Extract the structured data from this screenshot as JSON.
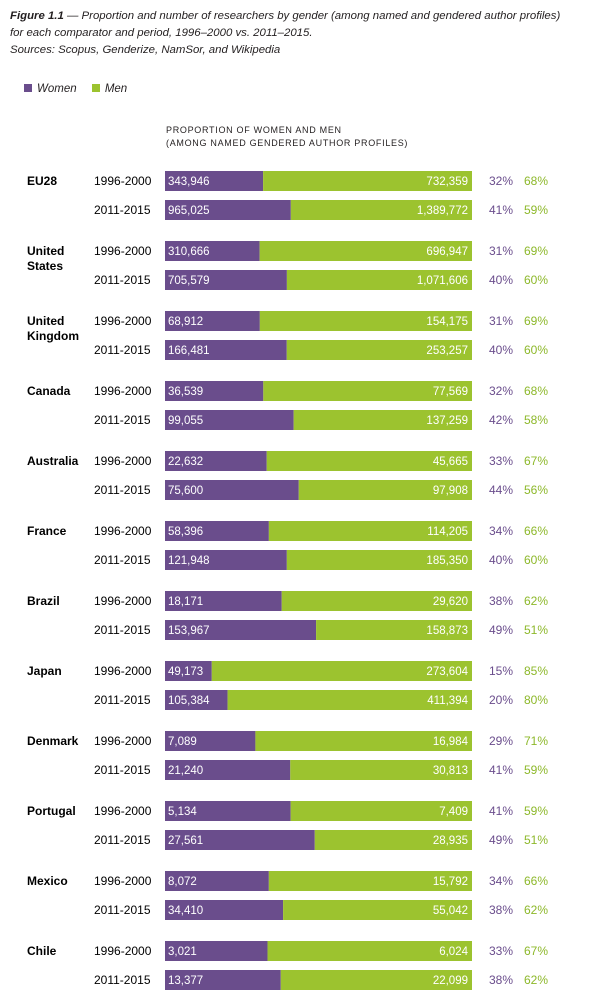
{
  "caption": {
    "label": "Figure 1.1",
    "dash": "—",
    "line1": "Proportion and number of researchers by gender (among named and gendered author profiles)",
    "line2": "for each comparator and period, 1996–2000 vs. 2011–2015.",
    "sources": "Sources: Scopus, Genderize, NamSor, and Wikipedia"
  },
  "legend": [
    {
      "name": "Women",
      "color": "#6a4d8c"
    },
    {
      "name": "Men",
      "color": "#9cc32f"
    }
  ],
  "heading": {
    "line1": "Proportion of women and men",
    "line2": "(among named gendered author profiles)"
  },
  "colors": {
    "women": "#6a4d8c",
    "men": "#9cc32f",
    "women_text": "#6a4d8c",
    "men_text": "#8db82a"
  },
  "chart_data": {
    "type": "bar",
    "orientation": "horizontal",
    "stacked": "100%",
    "title": "Proportion of women and men (among named gendered author profiles)",
    "series_names": [
      "Women",
      "Men"
    ],
    "groups": [
      {
        "label_lines": [
          "EU28"
        ],
        "rows": [
          {
            "period": "1996-2000",
            "women": 343946,
            "men": 732359,
            "women_label": "343,946",
            "men_label": "732,359",
            "women_pct": "32%",
            "men_pct": "68%"
          },
          {
            "period": "2011-2015",
            "women": 965025,
            "men": 1389772,
            "women_label": "965,025",
            "men_label": "1,389,772",
            "women_pct": "41%",
            "men_pct": "59%"
          }
        ]
      },
      {
        "label_lines": [
          "United",
          "States"
        ],
        "rows": [
          {
            "period": "1996-2000",
            "women": 310666,
            "men": 696947,
            "women_label": "310,666",
            "men_label": "696,947",
            "women_pct": "31%",
            "men_pct": "69%"
          },
          {
            "period": "2011-2015",
            "women": 705579,
            "men": 1071606,
            "women_label": "705,579",
            "men_label": "1,071,606",
            "women_pct": "40%",
            "men_pct": "60%"
          }
        ]
      },
      {
        "label_lines": [
          "United",
          "Kingdom"
        ],
        "rows": [
          {
            "period": "1996-2000",
            "women": 68912,
            "men": 154175,
            "women_label": "68,912",
            "men_label": "154,175",
            "women_pct": "31%",
            "men_pct": "69%"
          },
          {
            "period": "2011-2015",
            "women": 166481,
            "men": 253257,
            "women_label": "166,481",
            "men_label": "253,257",
            "women_pct": "40%",
            "men_pct": "60%"
          }
        ]
      },
      {
        "label_lines": [
          "Canada"
        ],
        "rows": [
          {
            "period": "1996-2000",
            "women": 36539,
            "men": 77569,
            "women_label": "36,539",
            "men_label": "77,569",
            "women_pct": "32%",
            "men_pct": "68%"
          },
          {
            "period": "2011-2015",
            "women": 99055,
            "men": 137259,
            "women_label": "99,055",
            "men_label": "137,259",
            "women_pct": "42%",
            "men_pct": "58%"
          }
        ]
      },
      {
        "label_lines": [
          "Australia"
        ],
        "rows": [
          {
            "period": "1996-2000",
            "women": 22632,
            "men": 45665,
            "women_label": "22,632",
            "men_label": "45,665",
            "women_pct": "33%",
            "men_pct": "67%"
          },
          {
            "period": "2011-2015",
            "women": 75600,
            "men": 97908,
            "women_label": "75,600",
            "men_label": "97,908",
            "women_pct": "44%",
            "men_pct": "56%"
          }
        ]
      },
      {
        "label_lines": [
          "France"
        ],
        "rows": [
          {
            "period": "1996-2000",
            "women": 58396,
            "men": 114205,
            "women_label": "58,396",
            "men_label": "114,205",
            "women_pct": "34%",
            "men_pct": "66%"
          },
          {
            "period": "2011-2015",
            "women": 121948,
            "men": 185350,
            "women_label": "121,948",
            "men_label": "185,350",
            "women_pct": "40%",
            "men_pct": "60%"
          }
        ]
      },
      {
        "label_lines": [
          "Brazil"
        ],
        "rows": [
          {
            "period": "1996-2000",
            "women": 18171,
            "men": 29620,
            "women_label": "18,171",
            "men_label": "29,620",
            "women_pct": "38%",
            "men_pct": "62%"
          },
          {
            "period": "2011-2015",
            "women": 153967,
            "men": 158873,
            "women_label": "153,967",
            "men_label": "158,873",
            "women_pct": "49%",
            "men_pct": "51%"
          }
        ]
      },
      {
        "label_lines": [
          "Japan"
        ],
        "rows": [
          {
            "period": "1996-2000",
            "women": 49173,
            "men": 273604,
            "women_label": "49,173",
            "men_label": "273,604",
            "women_pct": "15%",
            "men_pct": "85%"
          },
          {
            "period": "2011-2015",
            "women": 105384,
            "men": 411394,
            "women_label": "105,384",
            "men_label": "411,394",
            "women_pct": "20%",
            "men_pct": "80%"
          }
        ]
      },
      {
        "label_lines": [
          "Denmark"
        ],
        "rows": [
          {
            "period": "1996-2000",
            "women": 7089,
            "men": 16984,
            "women_label": "7,089",
            "men_label": "16,984",
            "women_pct": "29%",
            "men_pct": "71%"
          },
          {
            "period": "2011-2015",
            "women": 21240,
            "men": 30813,
            "women_label": "21,240",
            "men_label": "30,813",
            "women_pct": "41%",
            "men_pct": "59%"
          }
        ]
      },
      {
        "label_lines": [
          "Portugal"
        ],
        "rows": [
          {
            "period": "1996-2000",
            "women": 5134,
            "men": 7409,
            "women_label": "5,134",
            "men_label": "7,409",
            "women_pct": "41%",
            "men_pct": "59%"
          },
          {
            "period": "2011-2015",
            "women": 27561,
            "men": 28935,
            "women_label": "27,561",
            "men_label": "28,935",
            "women_pct": "49%",
            "men_pct": "51%"
          }
        ]
      },
      {
        "label_lines": [
          "Mexico"
        ],
        "rows": [
          {
            "period": "1996-2000",
            "women": 8072,
            "men": 15792,
            "women_label": "8,072",
            "men_label": "15,792",
            "women_pct": "34%",
            "men_pct": "66%"
          },
          {
            "period": "2011-2015",
            "women": 34410,
            "men": 55042,
            "women_label": "34,410",
            "men_label": "55,042",
            "women_pct": "38%",
            "men_pct": "62%"
          }
        ]
      },
      {
        "label_lines": [
          "Chile"
        ],
        "rows": [
          {
            "period": "1996-2000",
            "women": 3021,
            "men": 6024,
            "women_label": "3,021",
            "men_label": "6,024",
            "women_pct": "33%",
            "men_pct": "67%"
          },
          {
            "period": "2011-2015",
            "women": 13377,
            "men": 22099,
            "women_label": "13,377",
            "men_label": "22,099",
            "women_pct": "38%",
            "men_pct": "62%"
          }
        ]
      }
    ]
  }
}
